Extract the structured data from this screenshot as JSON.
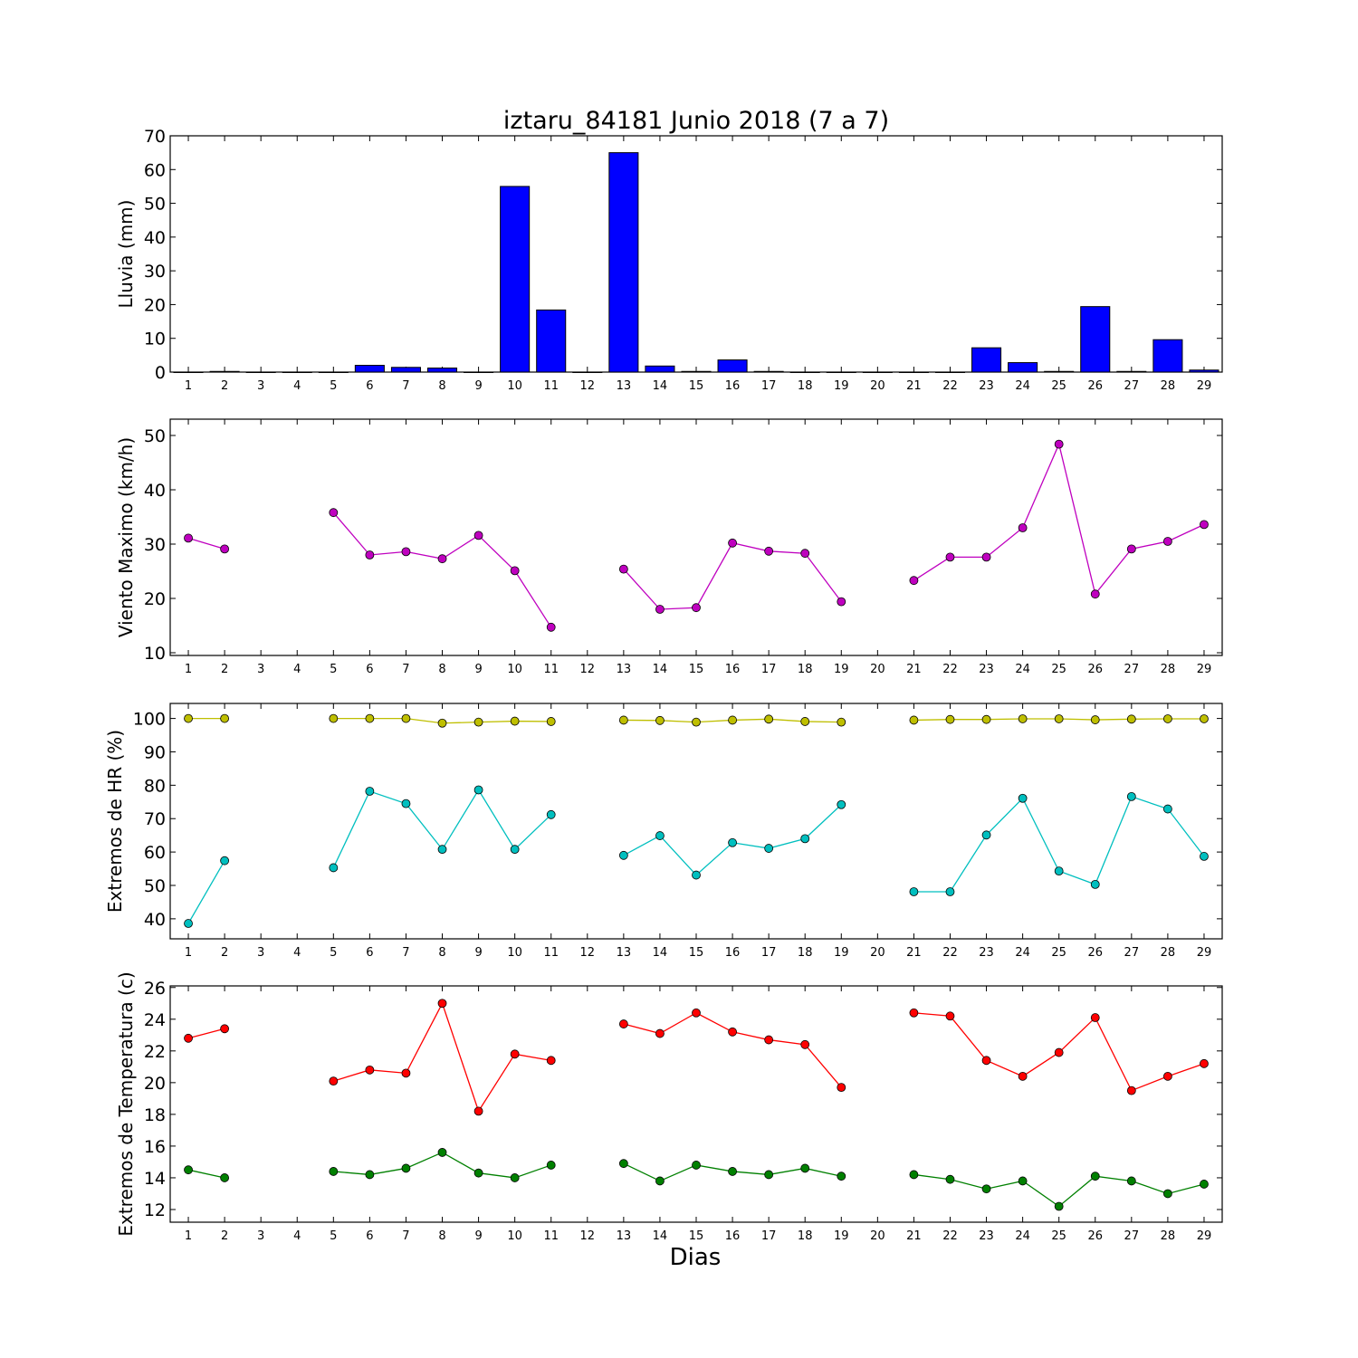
{
  "figure": {
    "title": "iztaru_84181 Junio 2018  (7 a 7)",
    "xlabel": "Dias"
  },
  "chart_data": [
    {
      "type": "bar",
      "ylabel": "Lluvia (mm)",
      "ylim": [
        0,
        70
      ],
      "yticks": [
        0,
        10,
        20,
        30,
        40,
        50,
        60,
        70
      ],
      "grid": false,
      "x": [
        1,
        2,
        3,
        4,
        5,
        6,
        7,
        8,
        9,
        10,
        11,
        12,
        13,
        14,
        15,
        16,
        17,
        18,
        19,
        20,
        21,
        22,
        23,
        24,
        25,
        26,
        27,
        28,
        29
      ],
      "series": [
        {
          "color": "#0000ff",
          "values": [
            0,
            0.2,
            0,
            0,
            0,
            2.0,
            1.4,
            1.2,
            0,
            55.0,
            18.4,
            0,
            65.0,
            1.8,
            0.2,
            3.6,
            0.2,
            0,
            0,
            0,
            0,
            0,
            7.2,
            2.8,
            0.2,
            19.4,
            0.2,
            9.6,
            0.6
          ]
        }
      ]
    },
    {
      "type": "line",
      "ylabel": "Viento Maximo (km/h)",
      "ylim": [
        9.5,
        53
      ],
      "yticks": [
        10,
        20,
        30,
        40,
        50
      ],
      "grid": false,
      "x": [
        1,
        2,
        3,
        4,
        5,
        6,
        7,
        8,
        9,
        10,
        11,
        12,
        13,
        14,
        15,
        16,
        17,
        18,
        19,
        20,
        21,
        22,
        23,
        24,
        25,
        26,
        27,
        28,
        29
      ],
      "series": [
        {
          "color": "#bf00bf",
          "values": [
            31.1,
            29.1,
            null,
            null,
            35.8,
            28.0,
            28.6,
            27.3,
            31.6,
            25.1,
            14.7,
            null,
            25.4,
            18.0,
            18.3,
            30.2,
            28.7,
            28.3,
            19.4,
            null,
            23.3,
            27.6,
            27.6,
            33.0,
            48.4,
            20.8,
            29.1,
            30.5,
            33.6
          ]
        }
      ]
    },
    {
      "type": "line",
      "ylabel": "Extremos de HR (%)",
      "ylim": [
        34,
        104.5
      ],
      "yticks": [
        40,
        50,
        60,
        70,
        80,
        90,
        100
      ],
      "grid": false,
      "x": [
        1,
        2,
        3,
        4,
        5,
        6,
        7,
        8,
        9,
        10,
        11,
        12,
        13,
        14,
        15,
        16,
        17,
        18,
        19,
        20,
        21,
        22,
        23,
        24,
        25,
        26,
        27,
        28,
        29
      ],
      "series": [
        {
          "color": "#bfbf00",
          "values": [
            100,
            100,
            null,
            null,
            100,
            100,
            100,
            98.6,
            98.9,
            99.2,
            99.1,
            null,
            99.5,
            99.4,
            98.9,
            99.5,
            99.8,
            99.1,
            98.9,
            null,
            99.5,
            99.7,
            99.7,
            99.9,
            99.9,
            99.6,
            99.8,
            99.9,
            99.9
          ]
        },
        {
          "color": "#00bfbf",
          "values": [
            38.6,
            57.4,
            null,
            null,
            55.3,
            78.2,
            74.5,
            60.8,
            78.6,
            60.8,
            71.2,
            null,
            59.0,
            64.9,
            53.1,
            62.8,
            61.1,
            64.0,
            74.2,
            null,
            48.1,
            48.1,
            65.1,
            76.1,
            54.3,
            50.3,
            76.6,
            72.9,
            58.7
          ]
        }
      ]
    },
    {
      "type": "line",
      "ylabel": "Extremos de Temperatura (c)",
      "ylim": [
        11.2,
        26.1
      ],
      "yticks": [
        12,
        14,
        16,
        18,
        20,
        22,
        24,
        26
      ],
      "grid": false,
      "x": [
        1,
        2,
        3,
        4,
        5,
        6,
        7,
        8,
        9,
        10,
        11,
        12,
        13,
        14,
        15,
        16,
        17,
        18,
        19,
        20,
        21,
        22,
        23,
        24,
        25,
        26,
        27,
        28,
        29
      ],
      "series": [
        {
          "color": "#ff0000",
          "values": [
            22.8,
            23.4,
            null,
            null,
            20.1,
            20.8,
            20.6,
            25.0,
            18.2,
            21.8,
            21.4,
            null,
            23.7,
            23.1,
            24.4,
            23.2,
            22.7,
            22.4,
            19.7,
            null,
            24.4,
            24.2,
            21.4,
            20.4,
            21.9,
            24.1,
            19.5,
            20.4,
            21.2
          ]
        },
        {
          "color": "#008000",
          "values": [
            14.5,
            14.0,
            null,
            null,
            14.4,
            14.2,
            14.6,
            15.6,
            14.3,
            14.0,
            14.8,
            null,
            14.9,
            13.8,
            14.8,
            14.4,
            14.2,
            14.6,
            14.1,
            null,
            14.2,
            13.9,
            13.3,
            13.8,
            12.2,
            14.1,
            13.8,
            13.0,
            13.6
          ]
        }
      ]
    }
  ]
}
